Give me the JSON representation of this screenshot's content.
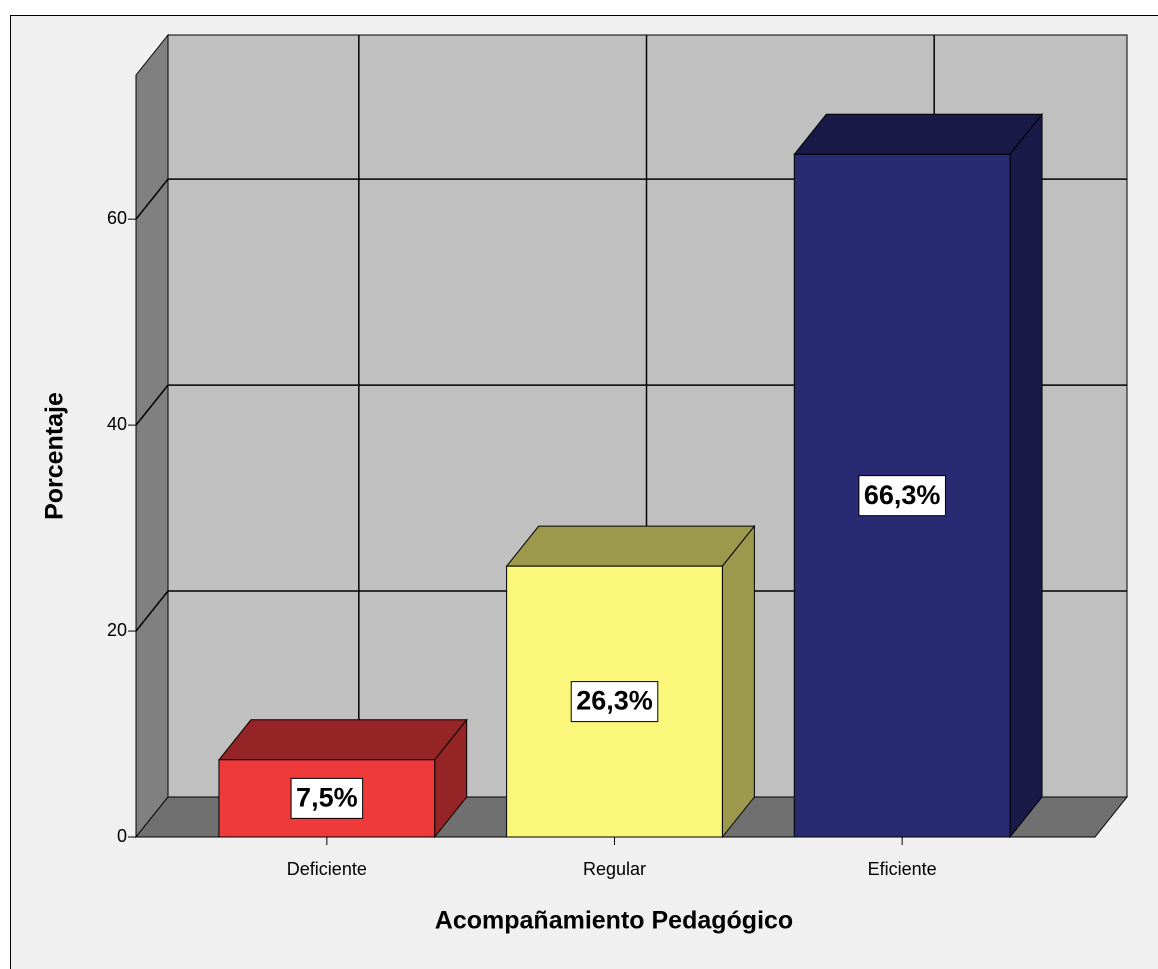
{
  "chart_data": {
    "type": "bar3d",
    "categories": [
      "Deficiente",
      "Regular",
      "Eficiente"
    ],
    "values": [
      7.5,
      26.3,
      66.3
    ],
    "value_labels": [
      "7,5%",
      "26,3%",
      "66,3%"
    ],
    "colors": [
      "#ef3a3c",
      "#fbf77a",
      "#282a72"
    ],
    "xlabel": "Acompañamiento Pedagógico",
    "ylabel": "Porcentaje",
    "ylim": [
      0,
      74
    ],
    "yticks": [
      0,
      20,
      40,
      60
    ],
    "grid": true
  }
}
